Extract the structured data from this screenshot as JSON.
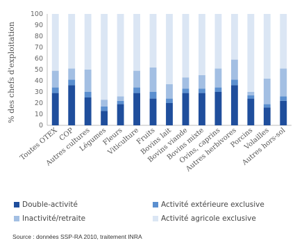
{
  "chart_data": {
    "type": "bar",
    "stacked": true,
    "ylabel": "% des chefs d'exploitation",
    "ylim": [
      0,
      100
    ],
    "yticks": [
      0,
      10,
      20,
      30,
      40,
      50,
      60,
      70,
      80,
      90,
      100
    ],
    "categories": [
      "Toutes OTEX",
      "COP",
      "Autres cultures",
      "Légumes",
      "Fleurs",
      "Viticulture",
      "Fruits",
      "Bovins lait",
      "Bovins viande",
      "Bovins mixte",
      "Ovins, caprins",
      "Autres herbivores",
      "Porcins",
      "Volailles",
      "Autres hors-sol"
    ],
    "series": [
      {
        "name": "Double-activité",
        "color": "#1f4e9c",
        "values": [
          29,
          36,
          25,
          13,
          19,
          29,
          24,
          20,
          29,
          29,
          30,
          36,
          24,
          16,
          22
        ]
      },
      {
        "name": "Activité extérieure exclusive",
        "color": "#5b8fcf",
        "values": [
          5,
          5,
          5,
          4,
          3,
          5,
          6,
          4,
          4,
          4,
          4,
          5,
          3,
          3,
          4
        ]
      },
      {
        "name": "Inactivité/retraite",
        "color": "#a3bfe3",
        "values": [
          15,
          10,
          20,
          6,
          4,
          15,
          22,
          13,
          10,
          12,
          17,
          18,
          3,
          23,
          25
        ]
      },
      {
        "name": "Activité agricole exclusive",
        "color": "#dbe6f4",
        "values": [
          51,
          49,
          50,
          77,
          74,
          51,
          48,
          63,
          57,
          55,
          49,
          41,
          70,
          58,
          49
        ]
      }
    ],
    "legend_position": "bottom"
  },
  "source": "Source : données SSP-RA 2010, traitement INRA"
}
